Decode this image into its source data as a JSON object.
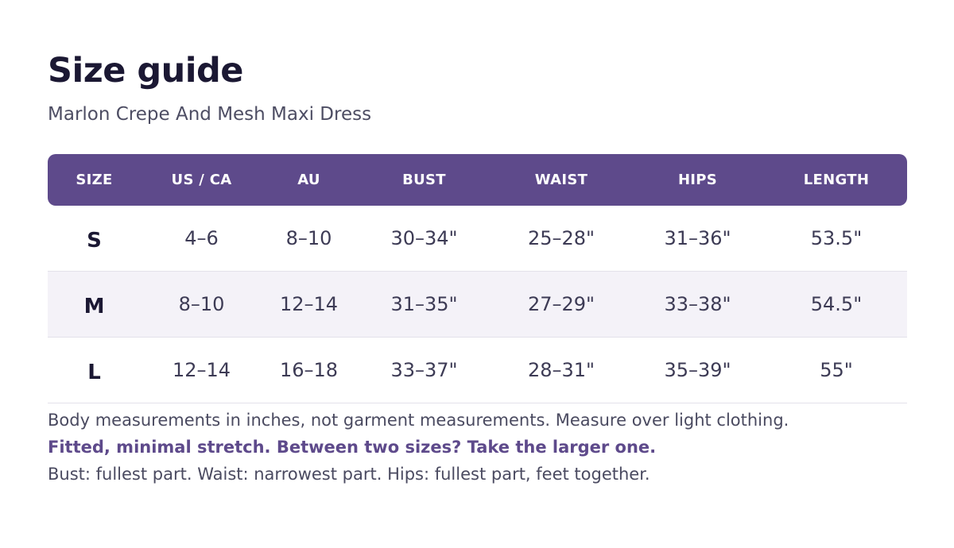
{
  "title": "Size guide",
  "subtitle": "Marlon Crepe And Mesh Maxi Dress",
  "table": {
    "headers": [
      "SIZE",
      "US / CA",
      "AU",
      "BUST",
      "WAIST",
      "HIPS",
      "LENGTH"
    ],
    "rows": [
      [
        "S",
        "4–6",
        "8–10",
        "30–34\"",
        "25–28\"",
        "31–36\"",
        "53.5\""
      ],
      [
        "M",
        "8–10",
        "12–14",
        "31–35\"",
        "27–29\"",
        "33–38\"",
        "54.5\""
      ],
      [
        "L",
        "12–14",
        "16–18",
        "33–37\"",
        "28–31\"",
        "35–39\"",
        "55\""
      ]
    ]
  },
  "notes": {
    "measurement_note": "Body measurements in inches, not garment measurements. Measure over light clothing.",
    "fit_note": "Fitted, minimal stretch. Between two sizes? Take the larger one.",
    "how_to_measure": "Bust: fullest part.  Waist: narrowest part.  Hips: fullest part, feet together."
  },
  "colors": {
    "accent": "#5e4a8b",
    "title": "#1b1833",
    "body_text": "#4a4a60",
    "stripe_row": "#f4f2f8"
  }
}
